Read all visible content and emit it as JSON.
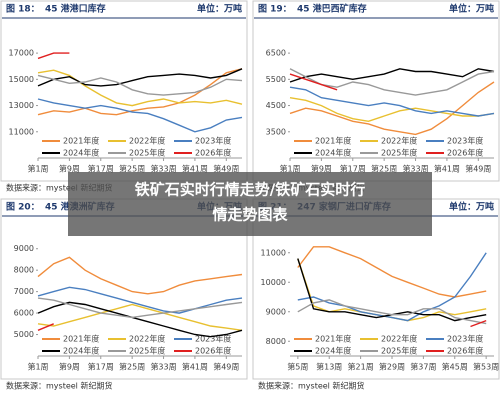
{
  "overlay_title": [
    "铁矿石实时行情走势/铁矿石实时行",
    "情走势图表"
  ],
  "chart_data": [
    {
      "type": "line",
      "title_number": "图 18：",
      "title": "45 港港口库存",
      "unit": "单位：万吨",
      "source": "数据来源：mysteel  新纪期货",
      "x": [
        1,
        5,
        9,
        13,
        17,
        21,
        25,
        29,
        33,
        37,
        41,
        45,
        49,
        53
      ],
      "xlim": [
        1,
        53
      ],
      "xticks": [
        {
          "value": 1,
          "label": "第1周"
        },
        {
          "value": 9,
          "label": "第9周"
        },
        {
          "value": 17,
          "label": "第17周"
        },
        {
          "value": 25,
          "label": "第25周"
        },
        {
          "value": 33,
          "label": "第33周"
        },
        {
          "value": 41,
          "label": "第41周"
        },
        {
          "value": 49,
          "label": "第49周"
        }
      ],
      "ylim": [
        9000,
        18000
      ],
      "yticks": [
        11000,
        13000,
        15000,
        17000
      ],
      "series": [
        {
          "name": "2021年度",
          "color": "#f08c3c",
          "values": [
            12300,
            12600,
            12500,
            12800,
            12400,
            12300,
            12600,
            12800,
            12900,
            13200,
            13800,
            14600,
            15500,
            15800
          ]
        },
        {
          "name": "2022年度",
          "color": "#e8c030",
          "values": [
            15500,
            15700,
            15300,
            14500,
            13800,
            13200,
            13000,
            13300,
            13500,
            13200,
            13300,
            13200,
            13400,
            13100
          ]
        },
        {
          "name": "2023年度",
          "color": "#4a7fc0",
          "values": [
            13500,
            13200,
            13000,
            12800,
            13000,
            12800,
            12500,
            12400,
            12000,
            11500,
            11000,
            11300,
            11900,
            12100
          ]
        },
        {
          "name": "2024年度",
          "color": "#000000",
          "values": [
            14500,
            15000,
            15200,
            14600,
            14500,
            14600,
            14900,
            15200,
            15300,
            15400,
            15300,
            15100,
            15300,
            15800
          ]
        },
        {
          "name": "2025年度",
          "color": "#999999",
          "values": [
            15300,
            15000,
            14700,
            14800,
            15100,
            14800,
            14200,
            13900,
            13800,
            13900,
            14000,
            14400,
            15000,
            14900
          ]
        },
        {
          "name": "2026年度",
          "color": "#e02020",
          "values": [
            16600,
            17000,
            17000,
            null,
            null,
            null,
            null,
            null,
            null,
            null,
            null,
            null,
            null,
            null
          ]
        }
      ]
    },
    {
      "type": "line",
      "title_number": "图 19：",
      "title": "45 港巴西矿库存",
      "unit": "单位：万吨",
      "source": "数据来源：mysteel  新纪期货",
      "x": [
        1,
        5,
        9,
        13,
        17,
        21,
        25,
        29,
        33,
        37,
        41,
        45,
        49,
        53
      ],
      "xlim": [
        1,
        53
      ],
      "xticks": [
        {
          "value": 1,
          "label": "第1周"
        },
        {
          "value": 9,
          "label": "第9周"
        },
        {
          "value": 17,
          "label": "第17周"
        },
        {
          "value": 25,
          "label": "第25周"
        },
        {
          "value": 33,
          "label": "第33周"
        },
        {
          "value": 41,
          "label": "第41周"
        },
        {
          "value": 49,
          "label": "第49周"
        }
      ],
      "ylim": [
        2500,
        7000
      ],
      "yticks": [
        3500,
        4500,
        5500,
        6500
      ],
      "series": [
        {
          "name": "2021年度",
          "color": "#f08c3c",
          "values": [
            4200,
            4400,
            4300,
            4100,
            3900,
            3800,
            3600,
            3500,
            3400,
            3600,
            4000,
            4500,
            5000,
            5400
          ]
        },
        {
          "name": "2022年度",
          "color": "#e8c030",
          "values": [
            4800,
            4700,
            4500,
            4200,
            4000,
            3900,
            4100,
            4300,
            4400,
            4300,
            4200,
            4100,
            4100,
            4200
          ]
        },
        {
          "name": "2023年度",
          "color": "#4a7fc0",
          "values": [
            5200,
            5100,
            4800,
            4700,
            4600,
            4500,
            4600,
            4500,
            4300,
            4200,
            4300,
            4200,
            4100,
            4200
          ]
        },
        {
          "name": "2024年度",
          "color": "#000000",
          "values": [
            5400,
            5600,
            5700,
            5600,
            5500,
            5600,
            5700,
            5900,
            5800,
            5800,
            5700,
            5600,
            5900,
            5800
          ]
        },
        {
          "name": "2025年度",
          "color": "#999999",
          "values": [
            5900,
            5600,
            5300,
            5200,
            5400,
            5300,
            5100,
            5000,
            4900,
            5000,
            5100,
            5400,
            5700,
            5800
          ]
        },
        {
          "name": "2026年度",
          "color": "#e02020",
          "values": [
            5700,
            5500,
            5300,
            5100,
            null,
            null,
            null,
            null,
            null,
            null,
            null,
            null,
            null,
            null
          ]
        }
      ]
    },
    {
      "type": "line",
      "title_number": "图 20：",
      "title": "45 港澳洲矿库存",
      "unit": "单位：万吨",
      "source": "数据来源：mysteel  新纪期货",
      "x": [
        1,
        5,
        9,
        13,
        17,
        21,
        25,
        29,
        33,
        37,
        41,
        45,
        49,
        53
      ],
      "xlim": [
        1,
        53
      ],
      "xticks": [
        {
          "value": 1,
          "label": "第1周"
        },
        {
          "value": 9,
          "label": "第9周"
        },
        {
          "value": 17,
          "label": "第17周"
        },
        {
          "value": 25,
          "label": "第25周"
        },
        {
          "value": 33,
          "label": "第33周"
        },
        {
          "value": 41,
          "label": "第41周"
        },
        {
          "value": 49,
          "label": "第49周"
        }
      ],
      "ylim": [
        4000,
        9500
      ],
      "yticks": [
        5000,
        6000,
        7000,
        8000,
        9000
      ],
      "series": [
        {
          "name": "2021年度",
          "color": "#f08c3c",
          "values": [
            7700,
            8300,
            8600,
            8000,
            7600,
            7300,
            7000,
            6900,
            7000,
            7300,
            7500,
            7600,
            7700,
            7800
          ]
        },
        {
          "name": "2022年度",
          "color": "#e8c030",
          "values": [
            5500,
            5400,
            5600,
            5800,
            6000,
            6200,
            6400,
            6200,
            6000,
            5800,
            5600,
            5400,
            5300,
            5200
          ]
        },
        {
          "name": "2023年度",
          "color": "#4a7fc0",
          "values": [
            6800,
            7000,
            7200,
            7100,
            6900,
            6700,
            6500,
            6300,
            6100,
            6000,
            6200,
            6400,
            6600,
            6700
          ]
        },
        {
          "name": "2024年度",
          "color": "#000000",
          "values": [
            6000,
            6300,
            6500,
            6400,
            6200,
            6000,
            5800,
            5600,
            5400,
            5200,
            5000,
            4900,
            5000,
            5200
          ]
        },
        {
          "name": "2025年度",
          "color": "#999999",
          "values": [
            6700,
            6600,
            6400,
            6200,
            6000,
            5900,
            5800,
            5900,
            6000,
            6100,
            6200,
            6300,
            6400,
            6500
          ]
        },
        {
          "name": "2026年度",
          "color": "#e02020",
          "values": [
            5200,
            5500,
            null,
            null,
            null,
            null,
            null,
            null,
            null,
            null,
            null,
            null,
            null,
            null
          ]
        }
      ]
    },
    {
      "type": "line",
      "title_number": "图 21：",
      "title": "247 家钢厂进口矿库存",
      "unit": "单位：万吨",
      "source": "数据来源：mysteel  新纪期货",
      "x": [
        5,
        9,
        13,
        17,
        21,
        25,
        29,
        33,
        37,
        41,
        45,
        49,
        53
      ],
      "xlim": [
        3,
        55
      ],
      "xticks": [
        {
          "value": 5,
          "label": "第5周"
        },
        {
          "value": 13,
          "label": "第13周"
        },
        {
          "value": 21,
          "label": "第21周"
        },
        {
          "value": 29,
          "label": "第29周"
        },
        {
          "value": 37,
          "label": "第37周"
        },
        {
          "value": 45,
          "label": "第45周"
        },
        {
          "value": 53,
          "label": "第53周"
        }
      ],
      "ylim": [
        7500,
        11500
      ],
      "yticks": [
        8000,
        9000,
        10000,
        11000
      ],
      "series": [
        {
          "name": "2021年度",
          "color": "#f08c3c",
          "values": [
            10500,
            11200,
            11200,
            11000,
            10800,
            10500,
            10200,
            10000,
            9800,
            9600,
            9500,
            9600,
            9700
          ]
        },
        {
          "name": "2022年度",
          "color": "#e8c030",
          "values": [
            10800,
            9200,
            9000,
            9100,
            9000,
            8900,
            8800,
            8700,
            8800,
            9000,
            8900,
            9000,
            9100
          ]
        },
        {
          "name": "2023年度",
          "color": "#4a7fc0",
          "values": [
            9400,
            9500,
            9300,
            9200,
            9000,
            8900,
            8800,
            8700,
            9000,
            9200,
            9500,
            10200,
            11000
          ]
        },
        {
          "name": "2024年度",
          "color": "#000000",
          "values": [
            10800,
            9100,
            9000,
            9000,
            8900,
            8800,
            8900,
            9000,
            8900,
            8900,
            8700,
            8800,
            8900
          ]
        },
        {
          "name": "2025年度",
          "color": "#999999",
          "values": [
            9000,
            9300,
            9400,
            9200,
            9100,
            9000,
            8900,
            8900,
            9100,
            9100,
            8800,
            8700,
            8600
          ]
        },
        {
          "name": "2026年度",
          "color": "#e02020",
          "values": [
            null,
            null,
            null,
            null,
            null,
            null,
            null,
            null,
            null,
            null,
            null,
            8500,
            8700
          ]
        }
      ]
    }
  ]
}
